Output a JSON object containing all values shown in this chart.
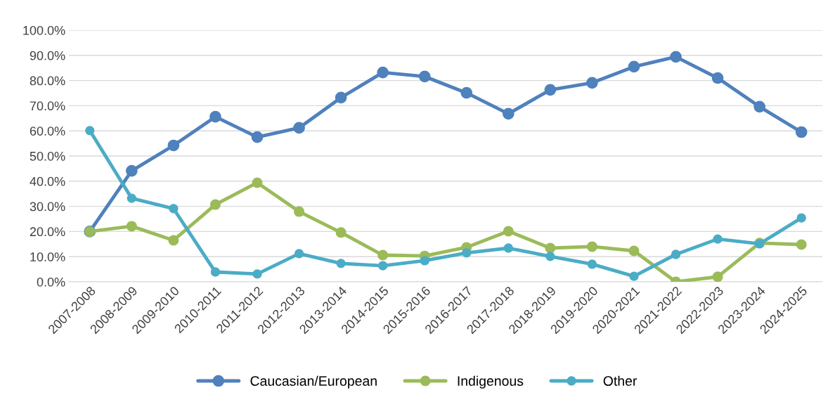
{
  "chart_data": {
    "type": "line",
    "categories": [
      "2007-2008",
      "2008-2009",
      "2009-2010",
      "2010-2011",
      "2011-2012",
      "2012-2013",
      "2013-2014",
      "2014-2015",
      "2015-2016",
      "2016-2017",
      "2017-2018",
      "2018-2019",
      "2019-2020",
      "2020-2021",
      "2021-2022",
      "2022-2023",
      "2023-2024",
      "2024-2025"
    ],
    "series": [
      {
        "name": "Caucasian/European",
        "color": "#4f81bd",
        "values": [
          20.0,
          44.1,
          54.2,
          65.6,
          57.5,
          61.2,
          73.2,
          83.2,
          81.6,
          75.1,
          66.8,
          76.3,
          79.1,
          85.5,
          89.4,
          81.0,
          69.6,
          59.5
        ]
      },
      {
        "name": "Indigenous",
        "color": "#9bbb59",
        "values": [
          20.0,
          22.1,
          16.5,
          30.7,
          39.4,
          27.9,
          19.6,
          10.6,
          10.3,
          13.7,
          20.1,
          13.4,
          14.0,
          12.3,
          0.0,
          2.0,
          15.4,
          14.8
        ]
      },
      {
        "name": "Other",
        "color": "#4bacc6",
        "values": [
          60.1,
          33.2,
          29.1,
          3.9,
          3.1,
          11.2,
          7.3,
          6.4,
          8.4,
          11.5,
          13.4,
          10.1,
          7.0,
          2.2,
          10.9,
          17.0,
          15.1,
          25.4
        ]
      }
    ],
    "ylim": [
      0,
      100
    ],
    "yticks": [
      {
        "value": 0,
        "label": "0.0%"
      },
      {
        "value": 10,
        "label": "10.0%"
      },
      {
        "value": 20,
        "label": "20.0%"
      },
      {
        "value": 30,
        "label": "30.0%"
      },
      {
        "value": 40,
        "label": "40.0%"
      },
      {
        "value": 50,
        "label": "50.0%"
      },
      {
        "value": 60,
        "label": "60.0%"
      },
      {
        "value": 70,
        "label": "70.0%"
      },
      {
        "value": 80,
        "label": "80.0%"
      },
      {
        "value": 90,
        "label": "90.0%"
      },
      {
        "value": 100,
        "label": "100.0%"
      }
    ],
    "grid": "y",
    "legend": "bottom",
    "marker": "circle",
    "line_style": "solid"
  }
}
